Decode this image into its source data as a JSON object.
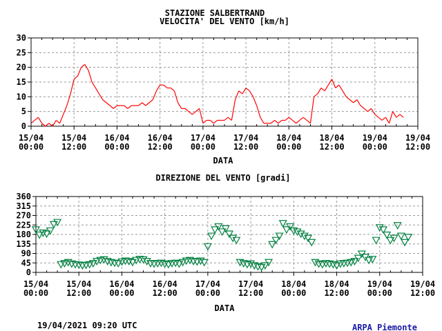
{
  "header": {
    "station": "STAZIONE SALBERTRAND"
  },
  "footer": {
    "timestamp": "19/04/2021 09:20 UTC",
    "brand": "ARPA Piemonte",
    "brand_color": "#1a1aa6"
  },
  "chart_data": [
    {
      "type": "line",
      "title": "VELOCITA' DEL VENTO [km/h]",
      "xlabel": "DATA",
      "ylabel": "",
      "x_unit": "hours since 15/04 00:00",
      "xlim": [
        0,
        108
      ],
      "ylim": [
        0,
        30
      ],
      "yticks": [
        0,
        5,
        10,
        15,
        20,
        25,
        30
      ],
      "xticks": [
        [
          "15/04",
          "00:00"
        ],
        [
          "15/04",
          "12:00"
        ],
        [
          "16/04",
          "00:00"
        ],
        [
          "16/04",
          "12:00"
        ],
        [
          "17/04",
          "00:00"
        ],
        [
          "17/04",
          "12:00"
        ],
        [
          "18/04",
          "00:00"
        ],
        [
          "18/04",
          "12:00"
        ],
        [
          "19/04",
          "00:00"
        ],
        [
          "19/04",
          "12:00"
        ]
      ],
      "grid": true,
      "color": "#ff0000",
      "values": [
        1,
        2,
        3,
        1,
        0,
        1,
        0,
        2,
        1,
        4,
        7,
        11,
        16,
        17,
        20,
        21,
        19,
        15,
        13,
        11,
        9,
        8,
        7,
        6,
        7,
        7,
        7,
        6,
        7,
        7,
        7,
        8,
        7,
        8,
        9,
        12,
        14,
        14,
        13,
        13,
        12,
        8,
        6,
        6,
        5,
        4,
        5,
        6,
        1,
        2,
        2,
        1,
        2,
        2,
        2,
        3,
        2,
        9,
        12,
        11,
        13,
        12,
        10,
        7,
        3,
        1,
        1,
        1,
        2,
        1,
        2,
        2,
        3,
        2,
        1,
        2,
        3,
        2,
        1,
        10,
        11,
        13,
        12,
        14,
        16,
        13,
        14,
        12,
        10,
        9,
        8,
        9,
        7,
        6,
        5,
        6,
        4,
        3,
        2,
        3,
        1,
        5,
        3,
        4,
        3
      ]
    },
    {
      "type": "scatter",
      "title": "DIREZIONE DEL VENTO [gradi]",
      "xlabel": "DATA",
      "ylabel": "",
      "x_unit": "hours since 15/04 00:00",
      "xlim": [
        0,
        108
      ],
      "ylim": [
        0,
        360
      ],
      "yticks": [
        0,
        45,
        90,
        135,
        180,
        225,
        270,
        315,
        360
      ],
      "xticks": [
        [
          "15/04",
          "00:00"
        ],
        [
          "15/04",
          "12:00"
        ],
        [
          "16/04",
          "00:00"
        ],
        [
          "16/04",
          "12:00"
        ],
        [
          "17/04",
          "00:00"
        ],
        [
          "17/04",
          "12:00"
        ],
        [
          "18/04",
          "00:00"
        ],
        [
          "18/04",
          "12:00"
        ],
        [
          "19/04",
          "00:00"
        ],
        [
          "19/04",
          "12:00"
        ]
      ],
      "grid": true,
      "color": "#008040",
      "marker": "down-triangle",
      "values": [
        200,
        175,
        185,
        180,
        195,
        225,
        235,
        35,
        40,
        45,
        38,
        35,
        33,
        30,
        32,
        35,
        40,
        50,
        55,
        58,
        50,
        45,
        42,
        40,
        48,
        52,
        50,
        45,
        55,
        60,
        58,
        50,
        40,
        38,
        40,
        42,
        38,
        35,
        40,
        42,
        38,
        45,
        52,
        55,
        50,
        48,
        52,
        45,
        120,
        170,
        200,
        215,
        190,
        205,
        180,
        160,
        150,
        45,
        40,
        35,
        38,
        30,
        25,
        22,
        30,
        45,
        130,
        150,
        170,
        230,
        200,
        215,
        195,
        190,
        180,
        170,
        160,
        140,
        45,
        38,
        35,
        40,
        38,
        35,
        30,
        38,
        40,
        42,
        45,
        50,
        65,
        85,
        70,
        55,
        60,
        150,
        210,
        200,
        175,
        150,
        160,
        220,
        170,
        140,
        165
      ]
    }
  ]
}
